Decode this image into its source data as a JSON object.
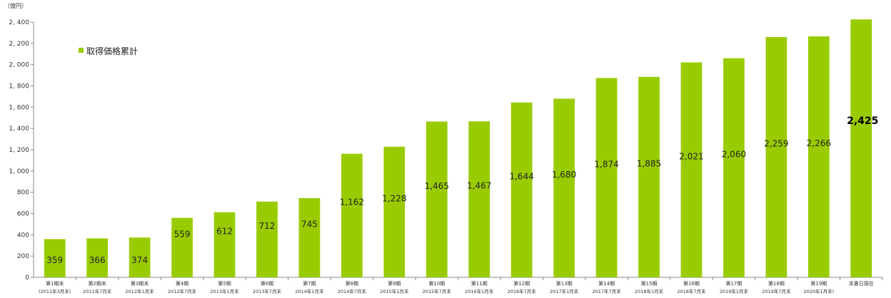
{
  "chart_data": {
    "type": "bar",
    "unit_label": "（億円）",
    "legend": [
      {
        "name": "取得価格累計",
        "color": "#99cc00"
      }
    ],
    "ylim": [
      0,
      2400
    ],
    "yticks": [
      "0",
      "200",
      "400",
      "600",
      "800",
      "1, 000",
      "1, 200",
      "1, 400",
      "1, 600",
      "1, 800",
      "2, 000",
      "2, 200",
      "2, 400"
    ],
    "ytick_values": [
      0,
      200,
      400,
      600,
      800,
      1000,
      1200,
      1400,
      1600,
      1800,
      2000,
      2200,
      2400
    ],
    "categories": [
      "第1期末",
      "第2期末",
      "第3期末",
      "第4期",
      "第5期",
      "第6期",
      "第7期",
      "第8期",
      "第9期",
      "第10期",
      "第11期",
      "第12期",
      "第13期",
      "第14期",
      "第15期",
      "第16期",
      "第17期",
      "第18期",
      "第19期",
      "本書日現在"
    ],
    "periods": [
      "(2011年3月末)",
      "2011年7月末",
      "2012年1月末",
      "2012年7月末",
      "2013年1月末",
      "2013年7月末",
      "2014年1月末",
      "2014年7月末",
      "2015年1月末",
      "2015年7月末",
      "2016年1月末",
      "2016年7月末",
      "2017年1月末",
      "2017年7月末",
      "2018年1月末",
      "2018年7月末",
      "2019年1月末",
      "2019年7月末",
      "2020年1月末)",
      ""
    ],
    "series": [
      {
        "name": "取得価格累計",
        "values": [
          359,
          366,
          374,
          559,
          612,
          712,
          745,
          1162,
          1228,
          1465,
          1467,
          1644,
          1680,
          1874,
          1885,
          2021,
          2060,
          2259,
          2266,
          2425
        ],
        "labels": [
          "359",
          "366",
          "374",
          "559",
          "612",
          "712",
          "745",
          "1,162",
          "1,228",
          "1,465",
          "1,467",
          "1,644",
          "1,680",
          "1,874",
          "1,885",
          "2,021",
          "2,060",
          "2,259",
          "2,266",
          "2,425"
        ]
      }
    ],
    "bar_color": "#99cc00",
    "grid": false
  }
}
